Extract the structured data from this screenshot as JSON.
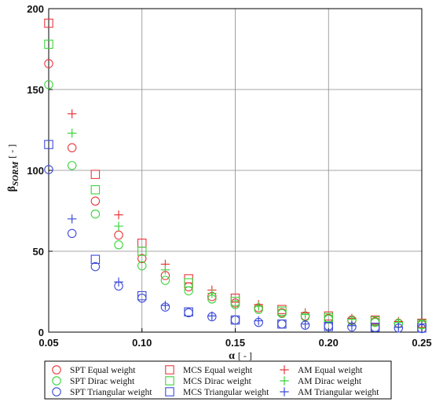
{
  "chart_data": {
    "type": "scatter",
    "xlabel": "α",
    "xlabel_unit": "[ - ]",
    "ylabel": "β",
    "ylabel_sub": "SORM",
    "ylabel_unit": "[ - ]",
    "xlim": [
      0.05,
      0.25
    ],
    "ylim": [
      0,
      200
    ],
    "xticks": [
      "0.05",
      "0.10",
      "0.15",
      "0.20",
      "0.25"
    ],
    "yticks": [
      "0",
      "50",
      "100",
      "150",
      "200"
    ],
    "grid": true,
    "legend_position": "bottom",
    "colors": {
      "red": "#e8383d",
      "green": "#39d43b",
      "blue": "#3c4bd8"
    },
    "series": [
      {
        "name": "SPT Equal weight",
        "marker": "circle",
        "color": "red",
        "x": [
          0.05,
          0.0625,
          0.075,
          0.0875,
          0.1,
          0.1125,
          0.125,
          0.1375,
          0.15,
          0.1625,
          0.175,
          0.1875,
          0.2,
          0.2125,
          0.225,
          0.2375,
          0.25
        ],
        "y": [
          166,
          114,
          81,
          60,
          45.5,
          35,
          28,
          22,
          18,
          15,
          12,
          10,
          8.5,
          7.5,
          6.5,
          5.5,
          5
        ]
      },
      {
        "name": "SPT Dirac weight",
        "marker": "circle",
        "color": "green",
        "x": [
          0.05,
          0.0625,
          0.075,
          0.0875,
          0.1,
          0.1125,
          0.125,
          0.1375,
          0.15,
          0.1625,
          0.175,
          0.1875,
          0.2,
          0.2125,
          0.225,
          0.2375,
          0.25
        ],
        "y": [
          153,
          103,
          73,
          54,
          41,
          32,
          25.5,
          20.5,
          17,
          14,
          11.5,
          9.5,
          8,
          7,
          6,
          5.2,
          4.5
        ]
      },
      {
        "name": "SPT Triangular weight",
        "marker": "circle",
        "color": "blue",
        "x": [
          0.05,
          0.0625,
          0.075,
          0.0875,
          0.1,
          0.1125,
          0.125,
          0.1375,
          0.15,
          0.1625,
          0.175,
          0.1875,
          0.2,
          0.2125,
          0.225,
          0.2375,
          0.25
        ],
        "y": [
          100.5,
          61,
          40.5,
          28.5,
          21,
          15.5,
          12,
          9.5,
          7.5,
          6,
          5,
          4.3,
          3.7,
          3.2,
          2.8,
          2.5,
          2.2
        ]
      },
      {
        "name": "MCS Equal weight",
        "marker": "square",
        "color": "red",
        "x": [
          0.05,
          0.075,
          0.1,
          0.125,
          0.15,
          0.175,
          0.2,
          0.225,
          0.25
        ],
        "y": [
          191,
          97.5,
          55,
          33,
          21,
          14,
          10,
          7.5,
          5.5
        ]
      },
      {
        "name": "MCS Dirac weight",
        "marker": "square",
        "color": "green",
        "x": [
          0.05,
          0.075,
          0.1,
          0.125,
          0.15,
          0.175,
          0.2,
          0.225,
          0.25
        ],
        "y": [
          178,
          88,
          50,
          30.5,
          19,
          13,
          9,
          7,
          5
        ]
      },
      {
        "name": "MCS Triangular weight",
        "marker": "square",
        "color": "blue",
        "x": [
          0.05,
          0.075,
          0.1,
          0.125,
          0.15,
          0.175,
          0.2,
          0.225,
          0.25
        ],
        "y": [
          116,
          45,
          22.5,
          12.5,
          7.5,
          5,
          3.5,
          3,
          2.5
        ]
      },
      {
        "name": "AM Equal weight",
        "marker": "plus",
        "color": "red",
        "x": [
          0.0625,
          0.0875,
          0.1125,
          0.1375,
          0.1625,
          0.1875,
          0.2125,
          0.2375
        ],
        "y": [
          135,
          72.5,
          42,
          26,
          17,
          12,
          8.5,
          6.5
        ]
      },
      {
        "name": "AM Dirac weight",
        "marker": "plus",
        "color": "green",
        "x": [
          0.0625,
          0.0875,
          0.1125,
          0.1375,
          0.1625,
          0.1875,
          0.2125,
          0.2375
        ],
        "y": [
          123,
          65.5,
          38.5,
          24,
          16,
          11,
          8,
          6
        ]
      },
      {
        "name": "AM Triangular weight",
        "marker": "plus",
        "color": "blue",
        "x": [
          0.0625,
          0.0875,
          0.1125,
          0.1375,
          0.1625,
          0.1875,
          0.2125,
          0.2375
        ],
        "y": [
          70,
          31,
          16.5,
          10,
          7,
          5,
          4,
          3
        ]
      }
    ]
  }
}
